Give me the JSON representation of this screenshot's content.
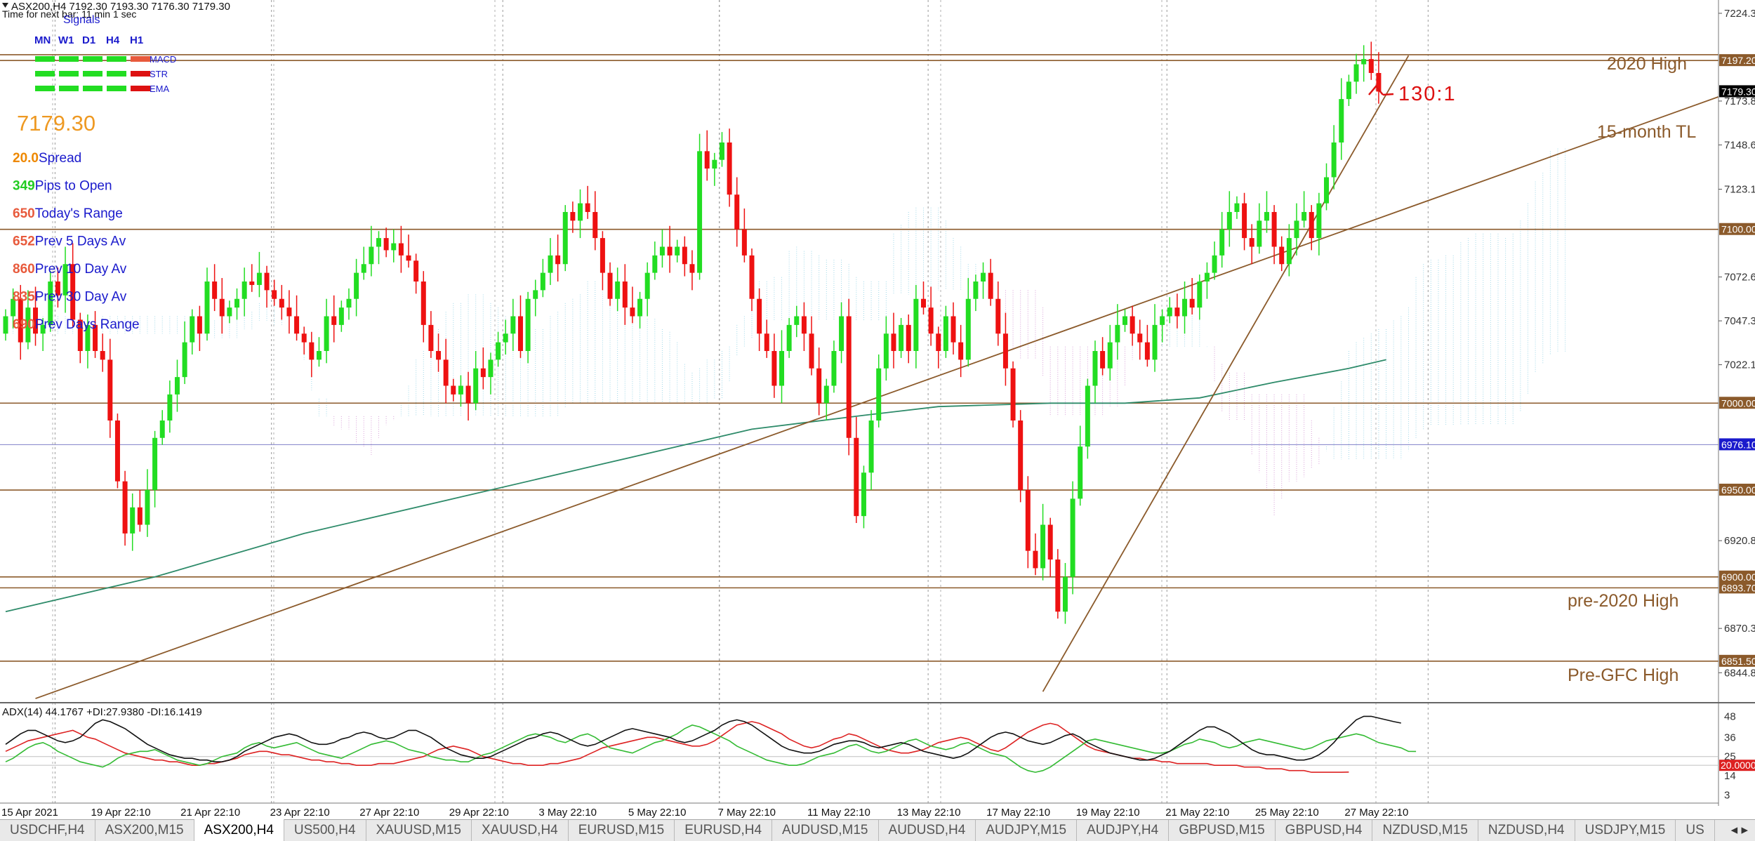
{
  "header": {
    "symbol_line": "ASX200,H4  7192.30 7193.30 7176.30 7179.30",
    "timer_line": "Time for next bar: 11 min 1 sec",
    "signals_title": "Signals",
    "timeframes": [
      "MN",
      "W1",
      "D1",
      "H4",
      "H1"
    ],
    "signal_rows": [
      {
        "label": "MACD",
        "label_color": "#e85a3c",
        "cells": [
          "#22dd22",
          "#22dd22",
          "#22dd22",
          "#22dd22",
          "#e85a3c"
        ]
      },
      {
        "label": "STR",
        "label_color": "#dd1111",
        "cells": [
          "#22dd22",
          "#22dd22",
          "#22dd22",
          "#22dd22",
          "#dd1111"
        ]
      },
      {
        "label": "EMA",
        "label_color": "#dd1111",
        "cells": [
          "#22dd22",
          "#22dd22",
          "#22dd22",
          "#22dd22",
          "#dd1111"
        ]
      }
    ],
    "current_price": "7179.30",
    "stats": [
      {
        "value": "20.0",
        "label": "Spread",
        "value_color": "#ee8800"
      },
      {
        "value": "349",
        "label": "Pips to Open",
        "value_color": "#22cc22"
      },
      {
        "value": "650",
        "label": "Today's Range",
        "value_color": "#e85a3c"
      },
      {
        "value": "652",
        "label": "Prev 5 Days Av",
        "value_color": "#e85a3c"
      },
      {
        "value": "860",
        "label": "Prev 10 Day Av",
        "value_color": "#e85a3c"
      },
      {
        "value": "835",
        "label": "Prev 30 Day Av",
        "value_color": "#e85a3c"
      },
      {
        "value": "690",
        "label": "Prev Days Range",
        "value_color": "#e85a3c"
      }
    ]
  },
  "annotations": {
    "high_2020": "2020 High",
    "trendline": "15-month TL",
    "pre2020": "pre-2020 High",
    "pregfc": "Pre-GFC High",
    "ratio": "130:1"
  },
  "adx_header": "ADX(14) 44.1767 +DI:27.9380 -DI:16.1419",
  "tabs": [
    "USDCHF,H4",
    "ASX200,M15",
    "ASX200,H4",
    "US500,H4",
    "XAUUSD,M15",
    "XAUUSD,H4",
    "EURUSD,M15",
    "EURUSD,H4",
    "AUDUSD,M15",
    "AUDUSD,H4",
    "AUDJPY,M15",
    "AUDJPY,H4",
    "GBPUSD,M15",
    "GBPUSD,H4",
    "NZDUSD,M15",
    "NZDUSD,H4",
    "USDJPY,M15",
    "US"
  ],
  "active_tab": "ASX200,H4",
  "tab_arrows": "◂ ▸",
  "chart_data": {
    "type": "candlestick",
    "instrument": "ASX200,H4",
    "price_axis": {
      "ticks": [
        "7224.35",
        "7173.85",
        "7148.60",
        "7123.10",
        "7072.60",
        "7047.35",
        "7022.10",
        "6920.85",
        "6870.35",
        "6844.85"
      ],
      "range": [
        6828,
        7232
      ],
      "level_labels": [
        {
          "value": 7197.2,
          "text": "7197.20",
          "color": "#8b5a2b"
        },
        {
          "value": 7179.3,
          "text": "7179.30",
          "color": "#000000"
        },
        {
          "value": 7100.0,
          "text": "7100.00",
          "color": "#8b5a2b"
        },
        {
          "value": 7000.0,
          "text": "7000.00",
          "color": "#8b5a2b"
        },
        {
          "value": 6976.1,
          "text": "6976.10",
          "color": "#1a1acc"
        },
        {
          "value": 6950.0,
          "text": "6950.00",
          "color": "#8b5a2b"
        },
        {
          "value": 6900.0,
          "text": "6900.00",
          "color": "#8b5a2b"
        },
        {
          "value": 6893.7,
          "text": "6893.70",
          "color": "#8b5a2b"
        },
        {
          "value": 6851.5,
          "text": "6851.50",
          "color": "#8b5a2b"
        }
      ]
    },
    "horizontal_levels": [
      7200.5,
      7197.2,
      7100,
      7000,
      6950,
      6900,
      6893.7,
      6851.5
    ],
    "bid_line": 6976.1,
    "time_labels": [
      {
        "index": 0,
        "text": "15 Apr 2021"
      },
      {
        "index": 12,
        "text": "19 Apr 22:10"
      },
      {
        "index": 24,
        "text": "21 Apr 22:10"
      },
      {
        "index": 36,
        "text": "23 Apr 22:10"
      },
      {
        "index": 48,
        "text": "27 Apr 22:10"
      },
      {
        "index": 60,
        "text": "29 Apr 22:10"
      },
      {
        "index": 72,
        "text": "3 May 22:10"
      },
      {
        "index": 84,
        "text": "5 May 22:10"
      },
      {
        "index": 96,
        "text": "7 May 22:10"
      },
      {
        "index": 108,
        "text": "11 May 22:10"
      },
      {
        "index": 120,
        "text": "13 May 22:10"
      },
      {
        "index": 132,
        "text": "17 May 22:10"
      },
      {
        "index": 144,
        "text": "19 May 22:10"
      },
      {
        "index": 156,
        "text": "21 May 22:10"
      },
      {
        "index": 168,
        "text": "25 May 22:10"
      },
      {
        "index": 180,
        "text": "27 May 22:10"
      }
    ],
    "period_separators": [
      7,
      36,
      67,
      96,
      124,
      156,
      191
    ],
    "closes": [
      7050,
      7060,
      7035,
      7055,
      7040,
      7045,
      7070,
      7062,
      7080,
      7048,
      7030,
      7045,
      7030,
      7025,
      6990,
      6955,
      6925,
      6940,
      6930,
      6950,
      6980,
      6990,
      7005,
      7015,
      7035,
      7050,
      7040,
      7070,
      7060,
      7050,
      7055,
      7060,
      7070,
      7068,
      7075,
      7065,
      7060,
      7055,
      7050,
      7040,
      7035,
      7025,
      7030,
      7050,
      7045,
      7055,
      7060,
      7075,
      7080,
      7090,
      7095,
      7088,
      7092,
      7085,
      7082,
      7070,
      7045,
      7030,
      7025,
      7010,
      7005,
      7010,
      7000,
      7020,
      7015,
      7025,
      7035,
      7040,
      7050,
      7030,
      7060,
      7065,
      7075,
      7085,
      7080,
      7110,
      7105,
      7115,
      7110,
      7095,
      7075,
      7060,
      7070,
      7055,
      7050,
      7060,
      7075,
      7085,
      7090,
      7085,
      7090,
      7080,
      7075,
      7145,
      7135,
      7140,
      7150,
      7120,
      7100,
      7085,
      7060,
      7040,
      7030,
      7010,
      7030,
      7045,
      7050,
      7040,
      7020,
      7000,
      7010,
      7030,
      7050,
      6980,
      6935,
      6960,
      6990,
      7020,
      7040,
      7030,
      7045,
      7030,
      7060,
      7055,
      7040,
      7030,
      7050,
      7035,
      7025,
      7060,
      7070,
      7075,
      7060,
      7040,
      7020,
      6990,
      6950,
      6915,
      6905,
      6930,
      6910,
      6880,
      6900,
      6945,
      6975,
      7010,
      7030,
      7020,
      7035,
      7045,
      7050,
      7040,
      7035,
      7025,
      7045,
      7050,
      7055,
      7050,
      7060,
      7055,
      7070,
      7075,
      7085,
      7100,
      7110,
      7115,
      7095,
      7090,
      7105,
      7110,
      7090,
      7080,
      7095,
      7105,
      7110,
      7095,
      7115,
      7130,
      7150,
      7175,
      7185,
      7195,
      7198,
      7190,
      7179.3
    ],
    "ema_anchors": [
      [
        0,
        6880
      ],
      [
        20,
        6900
      ],
      [
        40,
        6925
      ],
      [
        60,
        6945
      ],
      [
        80,
        6965
      ],
      [
        100,
        6985
      ],
      [
        115,
        6993
      ],
      [
        125,
        6998
      ],
      [
        140,
        7000
      ],
      [
        150,
        7000
      ],
      [
        160,
        7003
      ],
      [
        170,
        7012
      ],
      [
        180,
        7020
      ],
      [
        185,
        7025
      ]
    ],
    "trendlines": [
      {
        "name": "15-month TL",
        "from": [
          4,
          6830
        ],
        "to": [
          230,
          7177
        ]
      },
      {
        "name": "steep",
        "from": [
          139,
          6834
        ],
        "to": [
          188,
          7200
        ]
      }
    ],
    "adx": {
      "header": "ADX(14) 44.1767 +DI:27.9380 -DI:16.1419",
      "levels": [
        20,
        25
      ],
      "y_ticks": [
        "48",
        "36",
        "25",
        "20.0000",
        "14",
        "3"
      ],
      "adx": [
        32,
        35,
        38,
        40,
        40,
        38,
        36,
        34,
        33,
        34,
        36,
        40,
        44,
        46,
        45,
        43,
        41,
        38,
        35,
        32,
        30,
        28,
        26,
        25,
        24,
        24,
        23,
        23,
        22,
        22,
        23,
        25,
        28,
        30,
        32,
        34,
        36,
        37,
        38,
        37,
        35,
        33,
        32,
        32,
        33,
        35,
        36,
        38,
        39,
        38,
        36,
        35,
        36,
        38,
        40,
        40,
        38,
        36,
        33,
        30,
        28,
        26,
        25,
        24,
        24,
        25,
        27,
        29,
        31,
        33,
        35,
        36,
        38,
        39,
        38,
        36,
        34,
        32,
        31,
        32,
        34,
        36,
        38,
        40,
        41,
        40,
        39,
        38,
        37,
        36,
        34,
        33,
        34,
        36,
        38,
        40,
        43,
        45,
        46,
        45,
        43,
        40,
        37,
        34,
        31,
        29,
        28,
        27,
        27,
        28,
        30,
        32,
        33,
        34,
        34,
        33,
        31,
        30,
        31,
        32,
        33,
        32,
        30,
        28,
        27,
        26,
        25,
        24,
        25,
        27,
        30,
        33,
        36,
        38,
        39,
        38,
        36,
        34,
        33,
        32,
        33,
        35,
        37,
        38,
        36,
        33,
        31,
        29,
        27,
        26,
        25,
        24,
        23,
        23,
        24,
        26,
        28,
        31,
        34,
        37,
        40,
        42,
        42,
        40,
        38,
        35,
        32,
        29,
        27,
        26,
        26,
        25,
        24,
        23,
        23,
        24,
        26,
        29,
        33,
        38,
        42,
        46,
        48,
        48,
        47,
        46,
        45,
        44.18
      ],
      "plus_di": [
        22,
        24,
        27,
        30,
        32,
        33,
        31,
        28,
        26,
        24,
        22,
        21,
        20,
        19,
        21,
        24,
        26,
        27,
        28,
        28,
        29,
        27,
        25,
        23,
        22,
        21,
        20,
        21,
        23,
        25,
        26,
        27,
        30,
        32,
        33,
        31,
        30,
        31,
        32,
        33,
        31,
        29,
        27,
        26,
        25,
        24,
        26,
        28,
        30,
        32,
        33,
        34,
        33,
        31,
        29,
        28,
        27,
        25,
        24,
        23,
        23,
        22,
        22,
        24,
        26,
        27,
        29,
        31,
        33,
        35,
        37,
        38,
        37,
        36,
        34,
        33,
        35,
        37,
        38,
        36,
        33,
        30,
        29,
        28,
        27,
        29,
        31,
        33,
        34,
        36,
        38,
        41,
        43,
        42,
        40,
        38,
        36,
        34,
        31,
        29,
        27,
        25,
        23,
        22,
        21,
        20,
        20,
        21,
        23,
        25,
        26,
        27,
        29,
        31,
        32,
        30,
        28,
        27,
        28,
        30,
        32,
        34,
        35,
        33,
        31,
        30,
        29,
        30,
        32,
        33,
        31,
        29,
        27,
        26,
        25,
        22,
        19,
        17,
        16,
        17,
        19,
        22,
        25,
        28,
        31,
        34,
        35,
        34,
        33,
        32,
        31,
        30,
        29,
        28,
        27,
        27,
        28,
        30,
        32,
        33,
        35,
        34,
        33,
        31,
        30,
        31,
        33,
        34,
        35,
        34,
        33,
        32,
        31,
        30,
        29,
        30,
        32,
        34,
        35,
        36,
        37,
        38,
        37,
        35,
        33,
        32,
        31,
        30,
        28,
        27.94
      ],
      "minus_di": [
        28,
        30,
        32,
        34,
        35,
        36,
        37,
        38,
        39,
        40,
        38,
        36,
        35,
        33,
        31,
        29,
        27,
        26,
        25,
        24,
        23,
        23,
        22,
        22,
        21,
        20,
        20,
        21,
        21,
        22,
        23,
        24,
        26,
        27,
        28,
        28,
        27,
        26,
        26,
        25,
        24,
        23,
        23,
        22,
        22,
        21,
        21,
        20,
        20,
        20,
        21,
        21,
        21,
        22,
        23,
        24,
        25,
        27,
        29,
        30,
        31,
        30,
        29,
        27,
        25,
        24,
        23,
        22,
        21,
        21,
        20,
        20,
        20,
        21,
        21,
        22,
        23,
        24,
        26,
        28,
        30,
        31,
        32,
        33,
        34,
        35,
        36,
        36,
        35,
        34,
        33,
        32,
        31,
        31,
        32,
        34,
        37,
        40,
        43,
        44,
        45,
        44,
        42,
        40,
        38,
        35,
        33,
        31,
        30,
        31,
        33,
        35,
        36,
        38,
        37,
        35,
        33,
        31,
        29,
        28,
        27,
        27,
        28,
        29,
        31,
        33,
        34,
        35,
        36,
        35,
        33,
        31,
        29,
        28,
        30,
        33,
        36,
        39,
        41,
        43,
        44,
        43,
        40,
        37,
        34,
        31,
        29,
        28,
        27,
        26,
        25,
        24,
        24,
        23,
        23,
        22,
        22,
        21,
        21,
        21,
        21,
        21,
        20,
        20,
        20,
        20,
        19,
        19,
        19,
        18,
        18,
        18,
        17,
        17,
        17,
        16,
        16,
        16,
        16,
        16,
        16.14
      ]
    }
  }
}
